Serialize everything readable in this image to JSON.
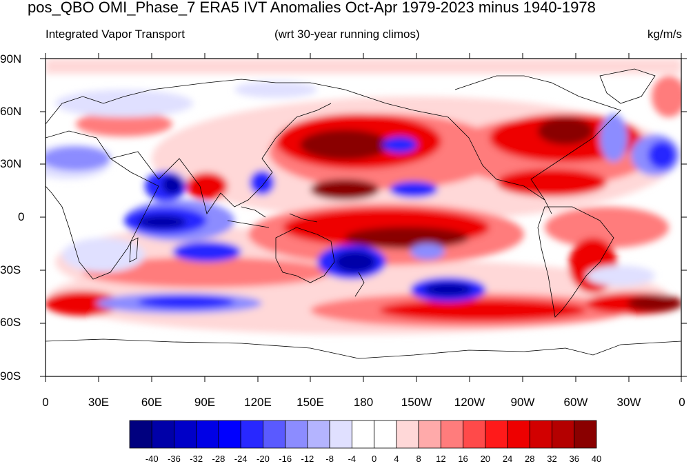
{
  "title": "pos_QBO OMI_Phase_7 ERA5 IVT Anomalies Oct-Apr 1979-2023 minus 1940-1978",
  "subtitle_left": "Integrated Vapor Transport",
  "subtitle_center": "(wrt 30-year running climos)",
  "subtitle_right": "kg/m/s",
  "lat_labels": [
    "90N",
    "60N",
    "30N",
    "0",
    "30S",
    "60S",
    "90S"
  ],
  "lon_labels": [
    "0",
    "30E",
    "60E",
    "90E",
    "120E",
    "150E",
    "180",
    "150W",
    "120W",
    "90W",
    "60W",
    "30W",
    "0"
  ],
  "colorbar": {
    "labels": [
      "-40",
      "-36",
      "-32",
      "-28",
      "-24",
      "-20",
      "-16",
      "-12",
      "-8",
      "-4",
      "0",
      "4",
      "8",
      "12",
      "16",
      "20",
      "24",
      "28",
      "32",
      "36",
      "40"
    ],
    "colors": [
      "#00007f",
      "#0000a8",
      "#0000c8",
      "#0000e6",
      "#0000ff",
      "#2828ff",
      "#5a5aff",
      "#8c8cff",
      "#b4b4ff",
      "#e0e0ff",
      "#ffffff",
      "#ffffff",
      "#ffd8d8",
      "#ffaaaa",
      "#ff7c7c",
      "#ff4a4a",
      "#ff1a1a",
      "#ee0000",
      "#d20000",
      "#b40000",
      "#8a0000"
    ]
  },
  "map": {
    "colors": {
      "pos_weak": "#ffd8d8",
      "pos_mid": "#ff7c7c",
      "pos_strong": "#ee0000",
      "pos_max": "#8a0000",
      "neg_weak": "#e0e0ff",
      "neg_mid": "#8c8cff",
      "neg_strong": "#2828ff",
      "neg_max": "#0000a8"
    }
  }
}
